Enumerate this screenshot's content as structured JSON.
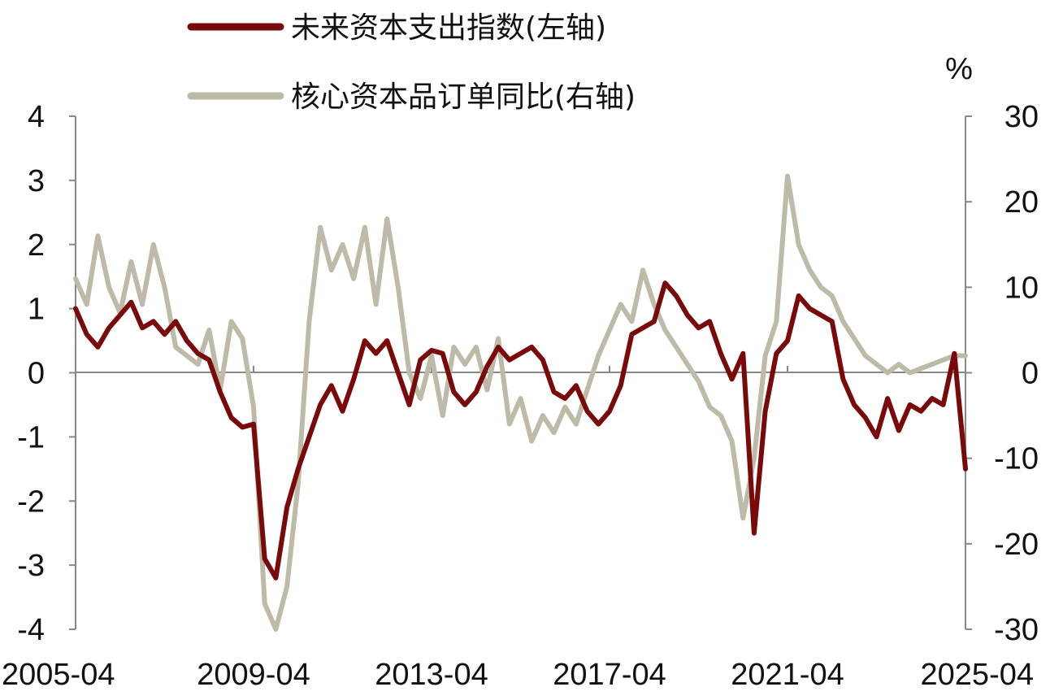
{
  "chart_data": {
    "type": "line",
    "title": "",
    "ylabel_right_unit": "%",
    "left_axis": {
      "min": -4,
      "max": 4,
      "ticks": [
        -4,
        -3,
        -2,
        -1,
        0,
        1,
        2,
        3,
        4
      ]
    },
    "right_axis": {
      "min": -30,
      "max": 30,
      "ticks": [
        -30,
        -20,
        -10,
        0,
        10,
        20,
        30
      ]
    },
    "x_ticks": [
      "2005-04",
      "2009-04",
      "2013-04",
      "2017-04",
      "2021-04",
      "2025-04"
    ],
    "x_range": [
      "2005-04",
      "2025-04"
    ],
    "grid": false,
    "legend_position": "top",
    "series": [
      {
        "name": "未来资本支出指数(左轴)",
        "axis": "left",
        "color": "#7a0a0a",
        "points": [
          [
            "2005-04",
            1.0
          ],
          [
            "2005-07",
            0.6
          ],
          [
            "2005-10",
            0.4
          ],
          [
            "2006-01",
            0.7
          ],
          [
            "2006-04",
            0.9
          ],
          [
            "2006-07",
            1.1
          ],
          [
            "2006-10",
            0.7
          ],
          [
            "2007-01",
            0.8
          ],
          [
            "2007-04",
            0.6
          ],
          [
            "2007-07",
            0.8
          ],
          [
            "2007-10",
            0.5
          ],
          [
            "2008-01",
            0.3
          ],
          [
            "2008-04",
            0.2
          ],
          [
            "2008-07",
            -0.3
          ],
          [
            "2008-10",
            -0.7
          ],
          [
            "2009-01",
            -0.85
          ],
          [
            "2009-04",
            -0.8
          ],
          [
            "2009-07",
            -2.9
          ],
          [
            "2009-10",
            -3.2
          ],
          [
            "2010-01",
            -2.1
          ],
          [
            "2010-04",
            -1.5
          ],
          [
            "2010-07",
            -1.0
          ],
          [
            "2010-10",
            -0.5
          ],
          [
            "2011-01",
            -0.2
          ],
          [
            "2011-04",
            -0.6
          ],
          [
            "2011-07",
            -0.1
          ],
          [
            "2011-10",
            0.5
          ],
          [
            "2012-01",
            0.3
          ],
          [
            "2012-04",
            0.5
          ],
          [
            "2012-07",
            0.0
          ],
          [
            "2012-10",
            -0.5
          ],
          [
            "2013-01",
            0.2
          ],
          [
            "2013-04",
            0.35
          ],
          [
            "2013-07",
            0.3
          ],
          [
            "2013-10",
            -0.3
          ],
          [
            "2014-01",
            -0.5
          ],
          [
            "2014-04",
            -0.3
          ],
          [
            "2014-07",
            0.1
          ],
          [
            "2014-10",
            0.4
          ],
          [
            "2015-01",
            0.2
          ],
          [
            "2015-04",
            0.3
          ],
          [
            "2015-07",
            0.4
          ],
          [
            "2015-10",
            0.2
          ],
          [
            "2016-01",
            -0.3
          ],
          [
            "2016-04",
            -0.4
          ],
          [
            "2016-07",
            -0.2
          ],
          [
            "2016-10",
            -0.6
          ],
          [
            "2017-01",
            -0.8
          ],
          [
            "2017-04",
            -0.6
          ],
          [
            "2017-07",
            -0.2
          ],
          [
            "2017-10",
            0.6
          ],
          [
            "2018-01",
            0.7
          ],
          [
            "2018-04",
            0.8
          ],
          [
            "2018-07",
            1.4
          ],
          [
            "2018-10",
            1.2
          ],
          [
            "2019-01",
            0.9
          ],
          [
            "2019-04",
            0.7
          ],
          [
            "2019-07",
            0.8
          ],
          [
            "2019-10",
            0.3
          ],
          [
            "2020-01",
            -0.1
          ],
          [
            "2020-04",
            0.3
          ],
          [
            "2020-07",
            -2.5
          ],
          [
            "2020-10",
            -0.6
          ],
          [
            "2021-01",
            0.3
          ],
          [
            "2021-04",
            0.5
          ],
          [
            "2021-07",
            1.2
          ],
          [
            "2021-10",
            1.0
          ],
          [
            "2022-01",
            0.9
          ],
          [
            "2022-04",
            0.8
          ],
          [
            "2022-07",
            -0.1
          ],
          [
            "2022-10",
            -0.5
          ],
          [
            "2023-01",
            -0.7
          ],
          [
            "2023-04",
            -1.0
          ],
          [
            "2023-07",
            -0.4
          ],
          [
            "2023-10",
            -0.9
          ],
          [
            "2024-01",
            -0.5
          ],
          [
            "2024-04",
            -0.6
          ],
          [
            "2024-07",
            -0.4
          ],
          [
            "2024-10",
            -0.5
          ],
          [
            "2025-01",
            0.3
          ],
          [
            "2025-04",
            -1.5
          ]
        ]
      },
      {
        "name": "核心资本品订单同比(右轴)",
        "axis": "right",
        "color": "#bdbaa8",
        "points": [
          [
            "2005-04",
            11
          ],
          [
            "2005-07",
            8
          ],
          [
            "2005-10",
            16
          ],
          [
            "2006-01",
            10
          ],
          [
            "2006-04",
            7
          ],
          [
            "2006-07",
            13
          ],
          [
            "2006-10",
            8
          ],
          [
            "2007-01",
            15
          ],
          [
            "2007-04",
            10
          ],
          [
            "2007-07",
            3
          ],
          [
            "2007-10",
            2
          ],
          [
            "2008-01",
            1
          ],
          [
            "2008-04",
            5
          ],
          [
            "2008-07",
            -2
          ],
          [
            "2008-10",
            6
          ],
          [
            "2009-01",
            4
          ],
          [
            "2009-04",
            -4
          ],
          [
            "2009-07",
            -27
          ],
          [
            "2009-10",
            -30
          ],
          [
            "2010-01",
            -25
          ],
          [
            "2010-04",
            -13
          ],
          [
            "2010-07",
            6
          ],
          [
            "2010-10",
            17
          ],
          [
            "2011-01",
            12
          ],
          [
            "2011-04",
            15
          ],
          [
            "2011-07",
            11
          ],
          [
            "2011-10",
            17
          ],
          [
            "2012-01",
            8
          ],
          [
            "2012-04",
            18
          ],
          [
            "2012-07",
            10
          ],
          [
            "2012-10",
            0
          ],
          [
            "2013-01",
            -3
          ],
          [
            "2013-04",
            2
          ],
          [
            "2013-07",
            -5
          ],
          [
            "2013-10",
            3
          ],
          [
            "2014-01",
            1
          ],
          [
            "2014-04",
            3
          ],
          [
            "2014-07",
            -2
          ],
          [
            "2014-10",
            4
          ],
          [
            "2015-01",
            -6
          ],
          [
            "2015-04",
            -3
          ],
          [
            "2015-07",
            -8
          ],
          [
            "2015-10",
            -5
          ],
          [
            "2016-01",
            -7
          ],
          [
            "2016-04",
            -4
          ],
          [
            "2016-07",
            -6
          ],
          [
            "2016-10",
            -2
          ],
          [
            "2017-01",
            2
          ],
          [
            "2017-04",
            5
          ],
          [
            "2017-07",
            8
          ],
          [
            "2017-10",
            6
          ],
          [
            "2018-01",
            12
          ],
          [
            "2018-04",
            8
          ],
          [
            "2018-07",
            5
          ],
          [
            "2018-10",
            3
          ],
          [
            "2019-01",
            1
          ],
          [
            "2019-04",
            -1
          ],
          [
            "2019-07",
            -4
          ],
          [
            "2019-10",
            -5
          ],
          [
            "2020-01",
            -8
          ],
          [
            "2020-04",
            -17
          ],
          [
            "2020-07",
            -10
          ],
          [
            "2020-10",
            2
          ],
          [
            "2021-01",
            6
          ],
          [
            "2021-04",
            23
          ],
          [
            "2021-07",
            15
          ],
          [
            "2021-10",
            12
          ],
          [
            "2022-01",
            10
          ],
          [
            "2022-04",
            9
          ],
          [
            "2022-07",
            6
          ],
          [
            "2022-10",
            4
          ],
          [
            "2023-01",
            2
          ],
          [
            "2023-04",
            1
          ],
          [
            "2023-07",
            0
          ],
          [
            "2023-10",
            1
          ],
          [
            "2024-01",
            0
          ],
          [
            "2024-04",
            0.5
          ],
          [
            "2024-07",
            1
          ],
          [
            "2024-10",
            1.5
          ],
          [
            "2025-01",
            2
          ],
          [
            "2025-04",
            2
          ]
        ]
      }
    ]
  }
}
